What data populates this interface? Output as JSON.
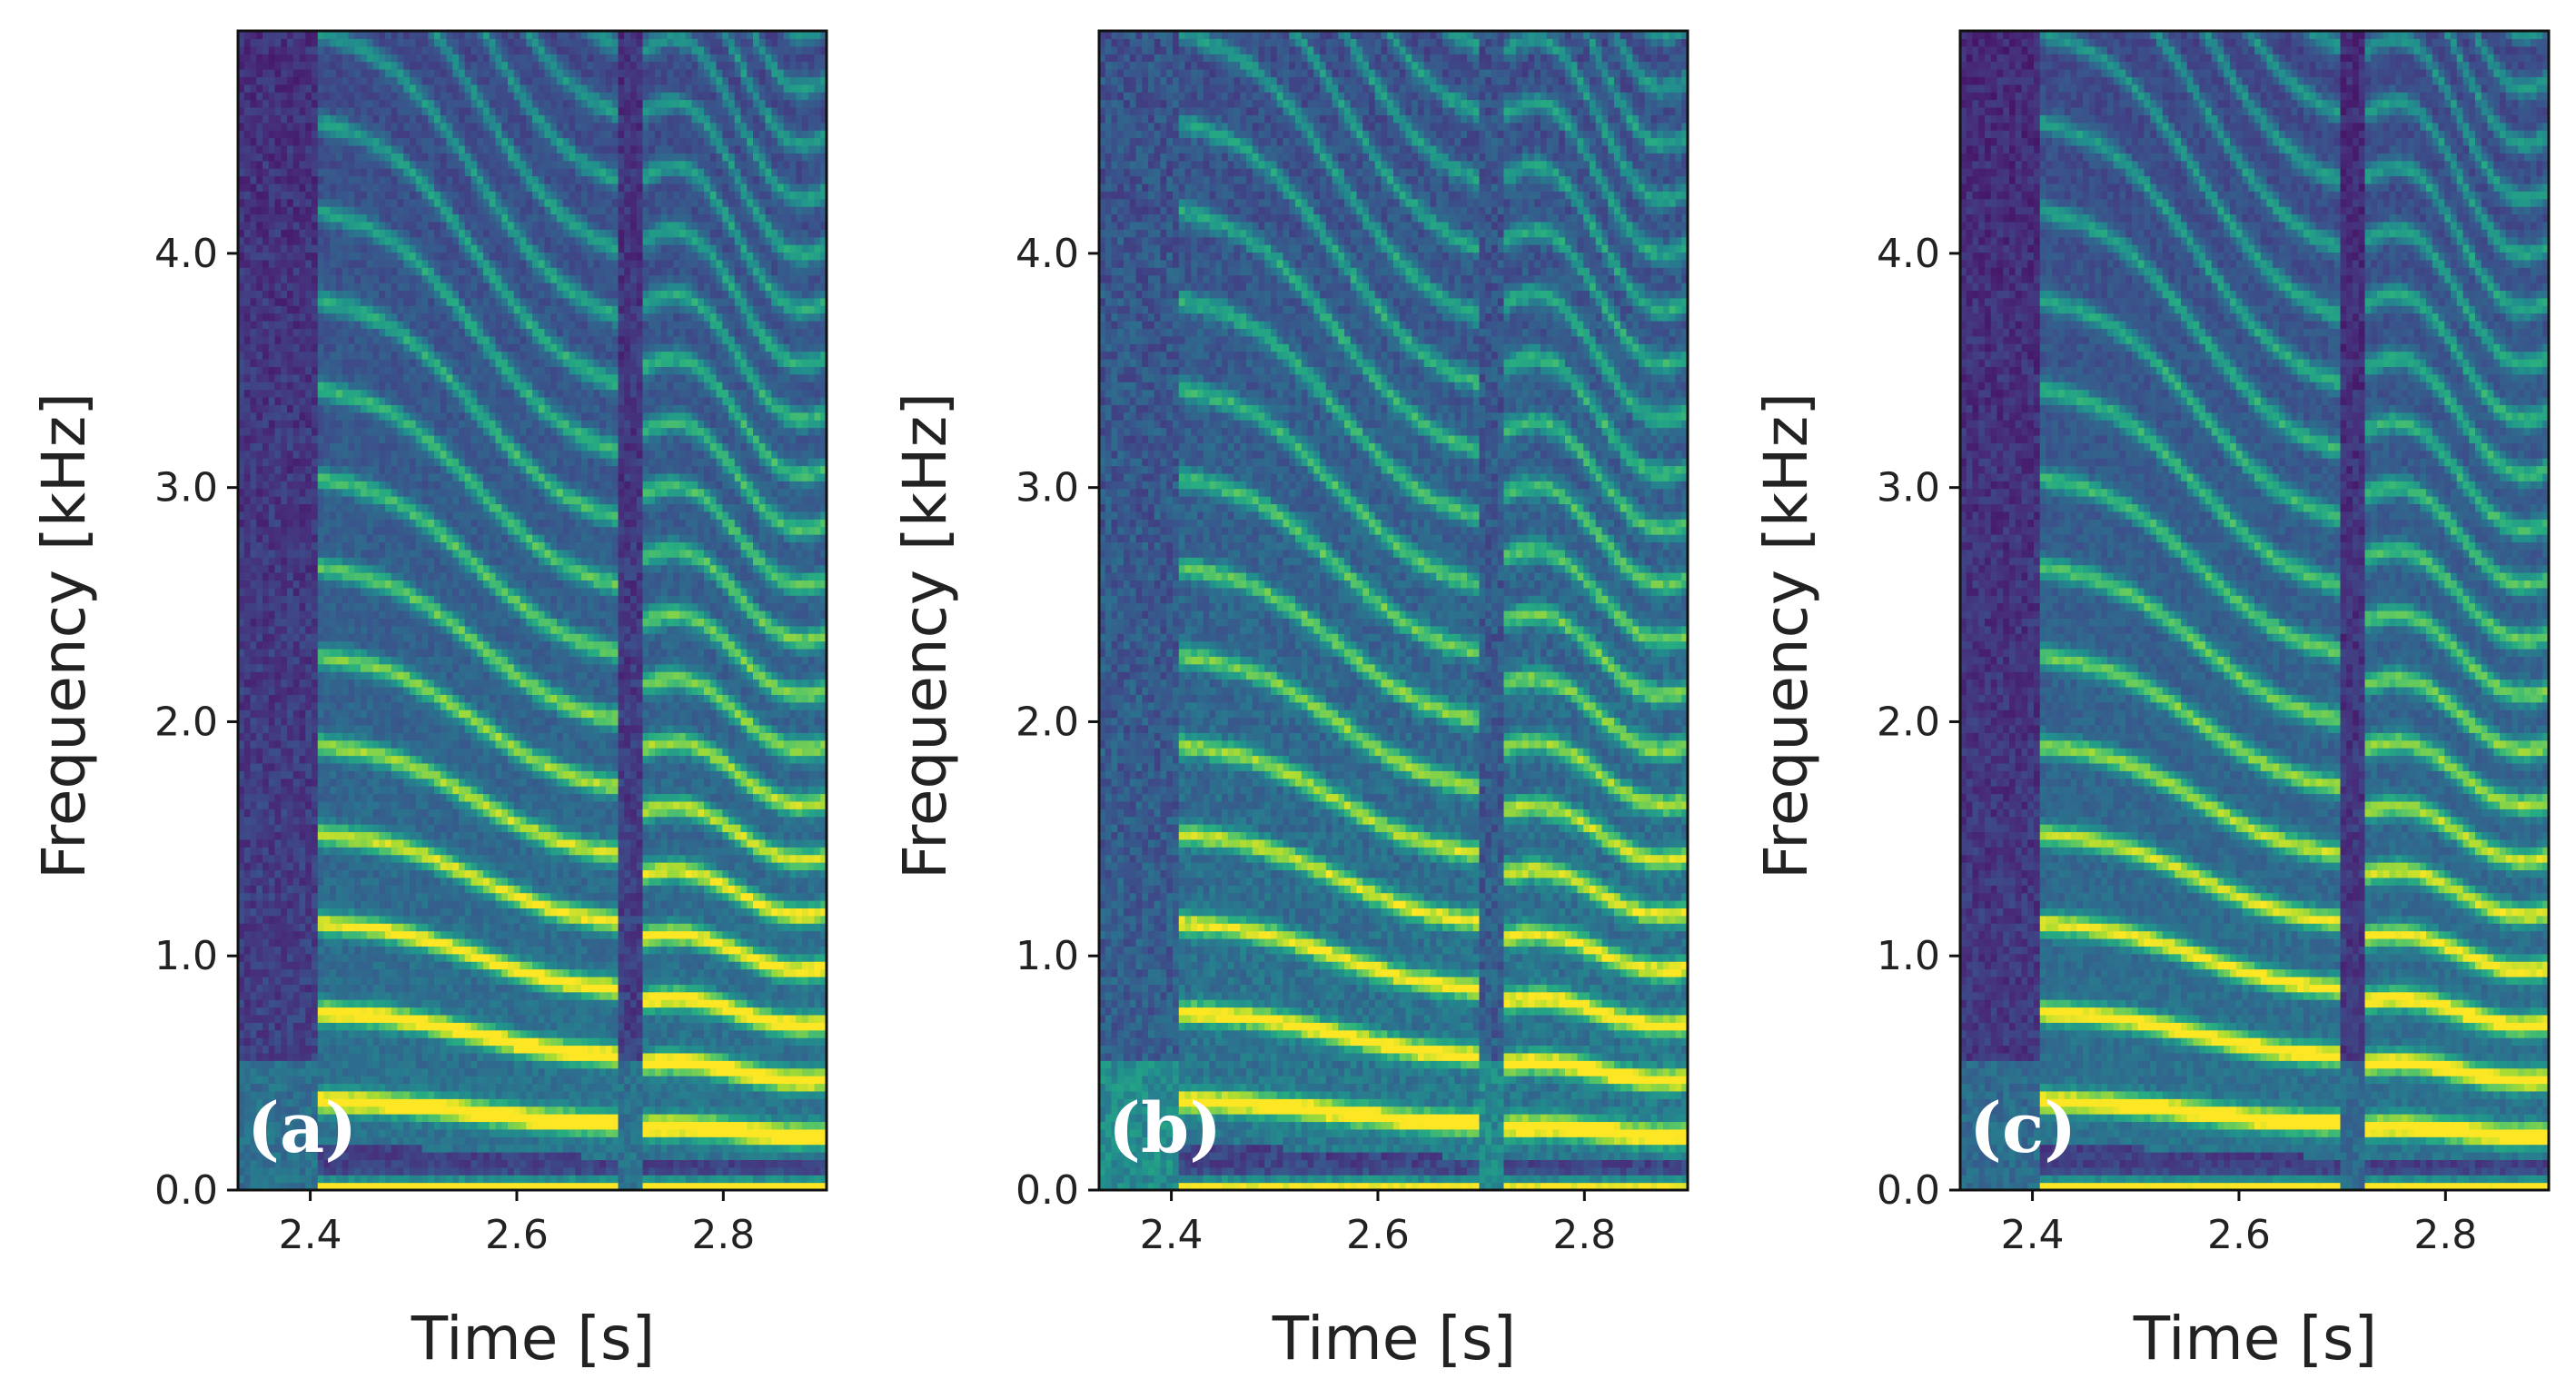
{
  "chart_data": [
    {
      "type": "heatmap",
      "panel_label": "(a)",
      "xlabel": "Time [s]",
      "ylabel": "Frequency [kHz]",
      "xlim": [
        2.33,
        2.9
      ],
      "ylim": [
        0,
        4.95
      ],
      "xticks": [
        2.4,
        2.6,
        2.8
      ],
      "xtick_labels": [
        "2.4",
        "2.6",
        "2.8"
      ],
      "yticks": [
        0,
        1,
        2,
        3,
        4
      ],
      "ytick_labels": [
        "0.0",
        "1.0",
        "2.0",
        "3.0",
        "4.0"
      ],
      "colormap": "viridis",
      "segments": [
        {
          "t_start": 2.41,
          "t_end": 2.7,
          "f0_start_khz": 0.38,
          "f0_end_khz": 0.29
        },
        {
          "t_start": 2.72,
          "t_end": 2.9,
          "f0_start_khz": 0.27,
          "f0_end_khz": 0.24
        }
      ],
      "noise_level": 0.32,
      "harmonic_strength": 1.0,
      "silent_gap_darkness": 0.85
    },
    {
      "type": "heatmap",
      "panel_label": "(b)",
      "xlabel": "Time [s]",
      "ylabel": "Frequency [kHz]",
      "xlim": [
        2.33,
        2.9
      ],
      "ylim": [
        0,
        4.95
      ],
      "xticks": [
        2.4,
        2.6,
        2.8
      ],
      "xtick_labels": [
        "2.4",
        "2.6",
        "2.8"
      ],
      "yticks": [
        0,
        1,
        2,
        3,
        4
      ],
      "ytick_labels": [
        "0.0",
        "1.0",
        "2.0",
        "3.0",
        "4.0"
      ],
      "colormap": "viridis",
      "segments": [
        {
          "t_start": 2.41,
          "t_end": 2.7,
          "f0_start_khz": 0.38,
          "f0_end_khz": 0.29
        },
        {
          "t_start": 2.72,
          "t_end": 2.9,
          "f0_start_khz": 0.27,
          "f0_end_khz": 0.24
        }
      ],
      "noise_level": 0.42,
      "harmonic_strength": 0.88,
      "silent_gap_darkness": 0.55
    },
    {
      "type": "heatmap",
      "panel_label": "(c)",
      "xlabel": "Time [s]",
      "ylabel": "Frequency [kHz]",
      "xlim": [
        2.33,
        2.9
      ],
      "ylim": [
        0,
        4.95
      ],
      "xticks": [
        2.4,
        2.6,
        2.8
      ],
      "xtick_labels": [
        "2.4",
        "2.6",
        "2.8"
      ],
      "yticks": [
        0,
        1,
        2,
        3,
        4
      ],
      "ytick_labels": [
        "0.0",
        "1.0",
        "2.0",
        "3.0",
        "4.0"
      ],
      "colormap": "viridis",
      "segments": [
        {
          "t_start": 2.41,
          "t_end": 2.7,
          "f0_start_khz": 0.38,
          "f0_end_khz": 0.29
        },
        {
          "t_start": 2.72,
          "t_end": 2.9,
          "f0_start_khz": 0.27,
          "f0_end_khz": 0.24
        }
      ],
      "noise_level": 0.3,
      "harmonic_strength": 0.95,
      "silent_gap_darkness": 0.9
    }
  ]
}
